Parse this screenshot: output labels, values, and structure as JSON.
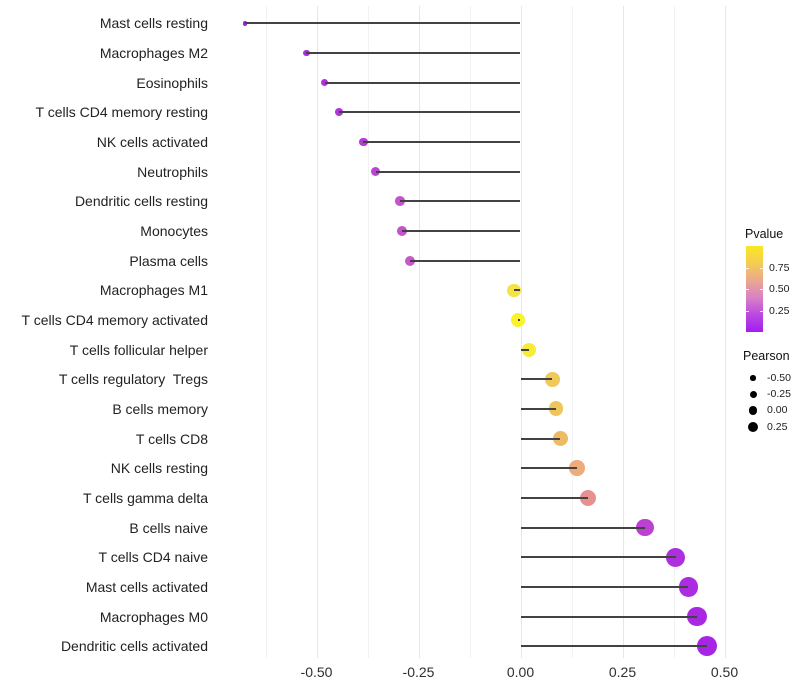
{
  "colors": {
    "background": "#ffffff",
    "grid_major": "#e6e6e6",
    "grid_minor": "#f2f2f2",
    "stem": "#424242",
    "axis_text": "#2e2e2e",
    "category_text": "#222222",
    "legend_dot": "#000000"
  },
  "chart_data": {
    "type": "lollipop",
    "title": "",
    "xlabel": "",
    "ylabel": "",
    "grid": "vertical-only",
    "xlim": [
      -0.73,
      0.52
    ],
    "categories": [
      "Mast cells resting",
      "Macrophages M2",
      "Eosinophils",
      "T cells CD4 memory resting",
      "NK cells activated",
      "Neutrophils",
      "Dendritic cells resting",
      "Monocytes",
      "Plasma cells",
      "Macrophages M1",
      "T cells CD4 memory activated",
      "T cells follicular helper",
      "T cells regulatory  Tregs",
      "B cells memory",
      "T cells CD8",
      "NK cells resting",
      "T cells gamma delta",
      "B cells naive",
      "T cells CD4 naive",
      "Mast cells activated",
      "Macrophages M0",
      "Dendritic cells activated"
    ],
    "series": [
      {
        "name": "Pearson correlation",
        "values": [
          -0.675,
          -0.525,
          -0.48,
          -0.445,
          -0.385,
          -0.355,
          -0.295,
          -0.29,
          -0.27,
          -0.016,
          -0.006,
          0.02,
          0.078,
          0.087,
          0.097,
          0.138,
          0.165,
          0.306,
          0.38,
          0.411,
          0.433,
          0.456
        ]
      }
    ],
    "point_colors": [
      "#9b24e6",
      "#a92fdd",
      "#ad34d9",
      "#b039d6",
      "#b23cd4",
      "#b846d0",
      "#c354c9",
      "#c355c9",
      "#c659c7",
      "#f4e344",
      "#faf32c",
      "#f7eb35",
      "#efc95a",
      "#efc65c",
      "#edbb64",
      "#eeab7c",
      "#e69190",
      "#bc41d3",
      "#ad30df",
      "#ab2ce1",
      "#a929e3",
      "#a726e5"
    ],
    "x_ticks": {
      "labels": [
        "-0.50",
        "-0.25",
        "0.00",
        "0.25",
        "0.50"
      ],
      "values": [
        -0.5,
        -0.25,
        0,
        0.25,
        0.5
      ]
    },
    "x_minor": [
      -0.625,
      -0.375,
      -0.125,
      0.125,
      0.375
    ],
    "legend_position": "right",
    "legends": {
      "color": {
        "title": "Pvalue",
        "tick_labels": [
          "0.75",
          "0.50",
          "0.25"
        ],
        "tick_values": [
          0.75,
          0.5,
          0.25
        ],
        "range": [
          0,
          1
        ],
        "gradient_top_to_bottom": [
          "#fbe723",
          "#f4cd52",
          "#eaa88e",
          "#d981c6",
          "#bb49e0",
          "#a21df2"
        ]
      },
      "size": {
        "title": "Pearson",
        "items": [
          {
            "label": "-0.50",
            "diameter": 5.5
          },
          {
            "label": "-0.25",
            "diameter": 7
          },
          {
            "label": "0.00",
            "diameter": 8.5
          },
          {
            "label": "0.25",
            "diameter": 10
          }
        ]
      }
    }
  }
}
